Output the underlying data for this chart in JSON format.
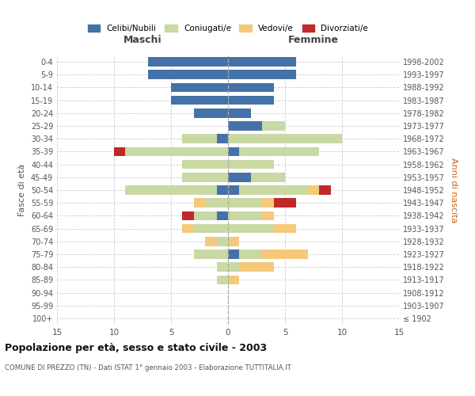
{
  "age_groups": [
    "100+",
    "95-99",
    "90-94",
    "85-89",
    "80-84",
    "75-79",
    "70-74",
    "65-69",
    "60-64",
    "55-59",
    "50-54",
    "45-49",
    "40-44",
    "35-39",
    "30-34",
    "25-29",
    "20-24",
    "15-19",
    "10-14",
    "5-9",
    "0-4"
  ],
  "birth_years": [
    "≤ 1902",
    "1903-1907",
    "1908-1912",
    "1913-1917",
    "1918-1922",
    "1923-1927",
    "1928-1932",
    "1933-1937",
    "1938-1942",
    "1943-1947",
    "1948-1952",
    "1953-1957",
    "1958-1962",
    "1963-1967",
    "1968-1972",
    "1973-1977",
    "1978-1982",
    "1983-1987",
    "1988-1992",
    "1993-1997",
    "1998-2002"
  ],
  "male": {
    "celibi": [
      0,
      0,
      0,
      0,
      0,
      0,
      0,
      0,
      1,
      0,
      1,
      0,
      0,
      0,
      1,
      0,
      3,
      5,
      5,
      7,
      7
    ],
    "coniugati": [
      0,
      0,
      0,
      1,
      1,
      3,
      1,
      3,
      2,
      2,
      8,
      4,
      4,
      9,
      3,
      0,
      0,
      0,
      0,
      0,
      0
    ],
    "vedovi": [
      0,
      0,
      0,
      0,
      0,
      0,
      1,
      1,
      0,
      1,
      0,
      0,
      0,
      0,
      0,
      0,
      0,
      0,
      0,
      0,
      0
    ],
    "divorziati": [
      0,
      0,
      0,
      0,
      0,
      0,
      0,
      0,
      1,
      0,
      0,
      0,
      0,
      1,
      0,
      0,
      0,
      0,
      0,
      0,
      0
    ]
  },
  "female": {
    "nubili": [
      0,
      0,
      0,
      0,
      0,
      1,
      0,
      0,
      0,
      0,
      1,
      2,
      0,
      1,
      0,
      3,
      2,
      4,
      4,
      6,
      6
    ],
    "coniugate": [
      0,
      0,
      0,
      0,
      1,
      2,
      0,
      4,
      3,
      3,
      6,
      3,
      4,
      7,
      10,
      2,
      0,
      0,
      0,
      0,
      0
    ],
    "vedove": [
      0,
      0,
      0,
      1,
      3,
      4,
      1,
      2,
      1,
      1,
      1,
      0,
      0,
      0,
      0,
      0,
      0,
      0,
      0,
      0,
      0
    ],
    "divorziate": [
      0,
      0,
      0,
      0,
      0,
      0,
      0,
      0,
      0,
      2,
      1,
      0,
      0,
      0,
      0,
      0,
      0,
      0,
      0,
      0,
      0
    ]
  },
  "colors": {
    "celibi_nubili": "#4472a8",
    "coniugati": "#c8d9a4",
    "vedovi": "#f5c97a",
    "divorziati": "#c0292a"
  },
  "xlim": 15,
  "title": "Popolazione per età, sesso e stato civile - 2003",
  "subtitle": "COMUNE DI PREZZO (TN) - Dati ISTAT 1° gennaio 2003 - Elaborazione TUTTITALIA.IT",
  "xlabel_left": "Maschi",
  "xlabel_right": "Femmine",
  "ylabel_left": "Fasce di età",
  "ylabel_right": "Anni di nascita",
  "bg_color": "#ffffff",
  "grid_color": "#cccccc"
}
